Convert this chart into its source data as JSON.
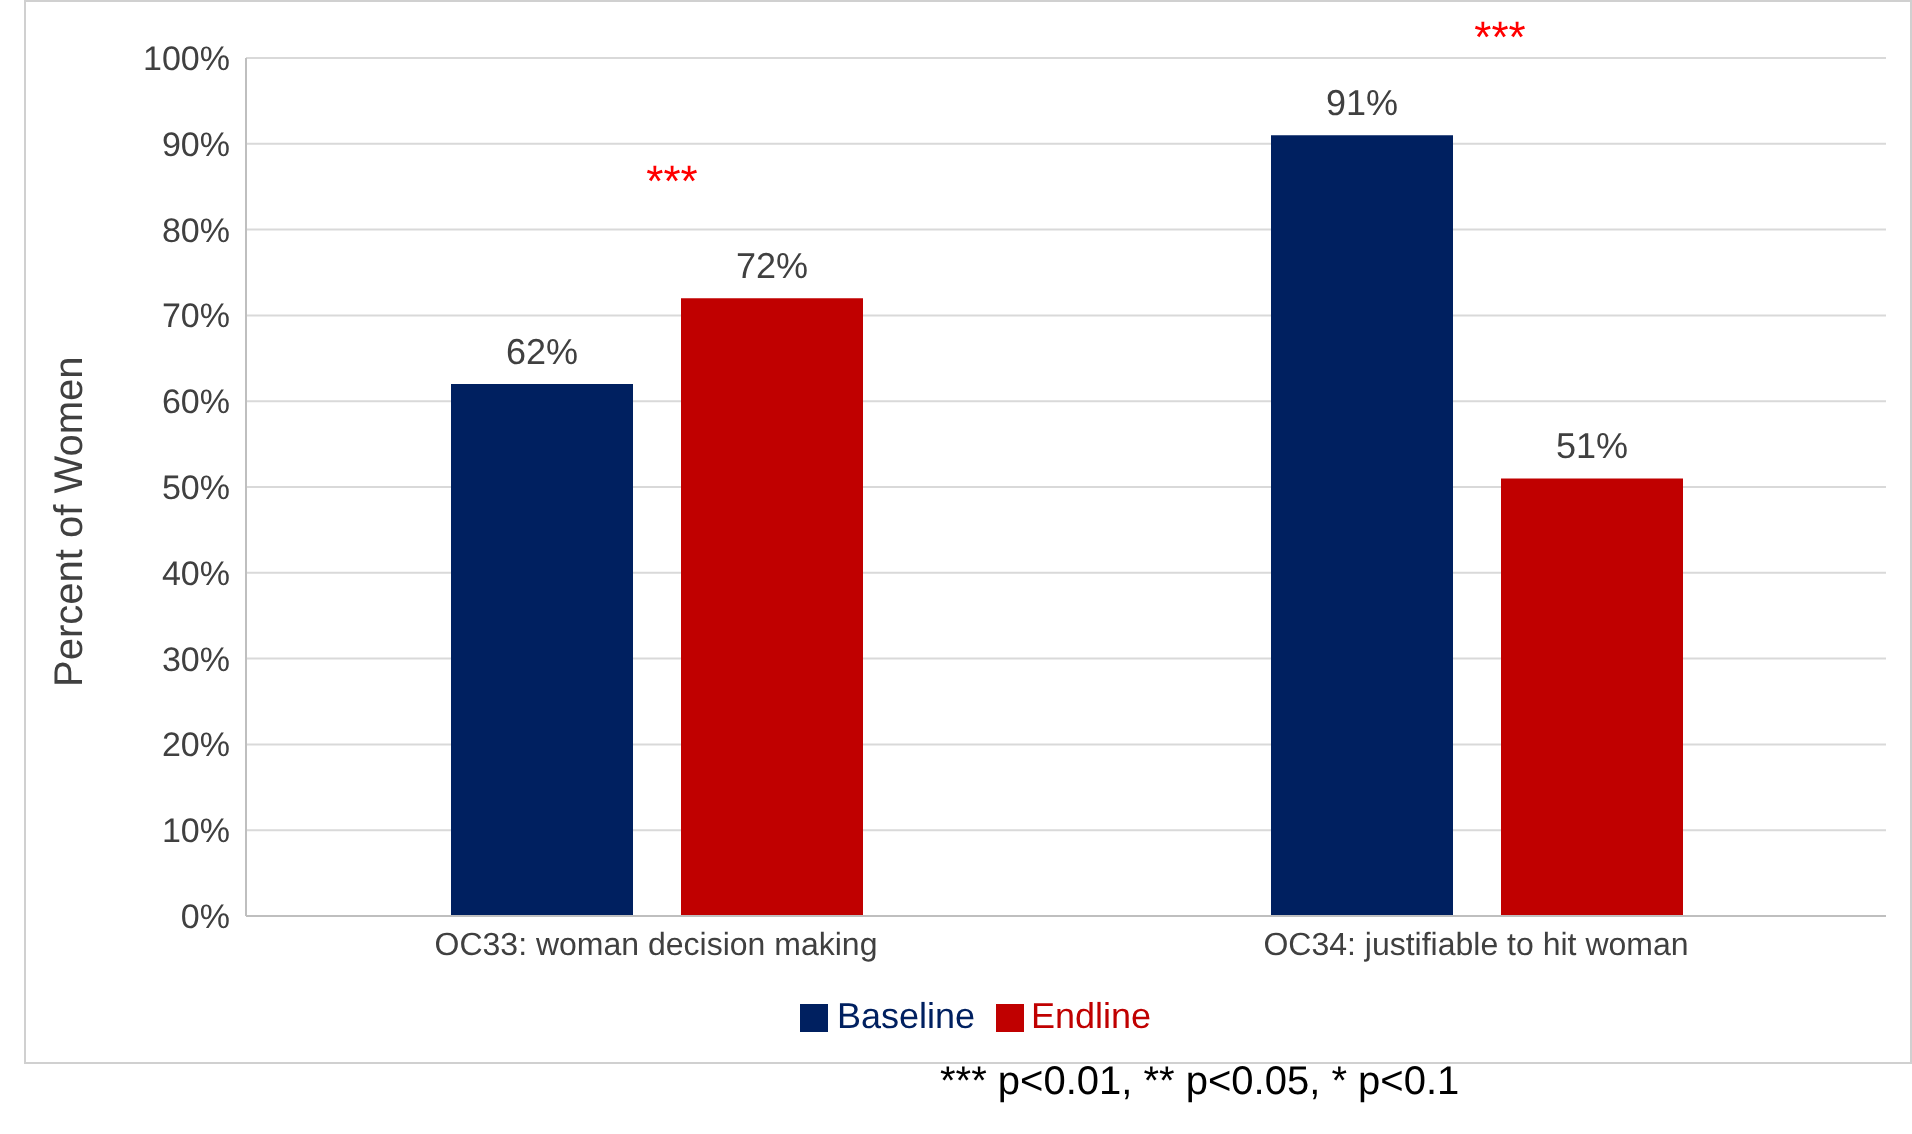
{
  "chart_data": {
    "type": "bar",
    "ylabel": "Percent of Women",
    "categories": [
      "OC33: woman decision making",
      "OC34: justifiable to hit woman"
    ],
    "series": [
      {
        "name": "Baseline",
        "color": "#002060",
        "values": [
          62,
          91
        ],
        "value_labels": [
          "62%",
          "91%"
        ]
      },
      {
        "name": "Endline",
        "color": "#c00000",
        "values": [
          72,
          51
        ],
        "value_labels": [
          "72%",
          "51%"
        ]
      }
    ],
    "ylim": [
      0,
      100
    ],
    "yticks": [
      {
        "value": 0,
        "label": "0%"
      },
      {
        "value": 10,
        "label": "10%"
      },
      {
        "value": 20,
        "label": "20%"
      },
      {
        "value": 30,
        "label": "30%"
      },
      {
        "value": 40,
        "label": "40%"
      },
      {
        "value": 50,
        "label": "50%"
      },
      {
        "value": 60,
        "label": "60%"
      },
      {
        "value": 70,
        "label": "70%"
      },
      {
        "value": 80,
        "label": "80%"
      },
      {
        "value": 90,
        "label": "90%"
      },
      {
        "value": 100,
        "label": "100%"
      }
    ],
    "grid": "y",
    "legend": "bottom",
    "annotations": [
      "***",
      "***",
      "*** p<0.01, ** p<0.05, * p<0.1"
    ]
  }
}
